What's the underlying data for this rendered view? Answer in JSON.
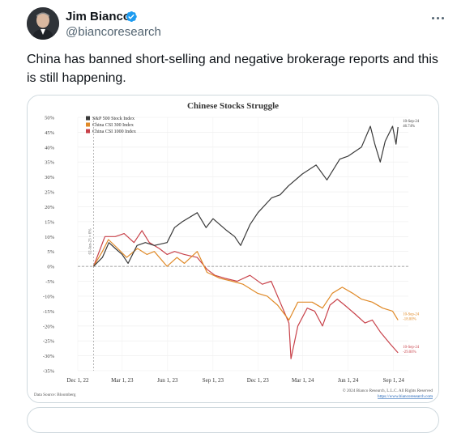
{
  "tweet": {
    "author_name": "Jim Bianco",
    "handle": "@biancoresearch",
    "text": "China has banned short-selling and negative brokerage reports and this is still happening."
  },
  "colors": {
    "sp500": "#3a3a3a",
    "csi300": "#e08a28",
    "csi1000": "#c8424a",
    "verified": "#1d9bf0"
  },
  "chart_data": {
    "type": "line",
    "title": "Chinese Stocks Struggle",
    "ylim": [
      -35,
      50
    ],
    "yticks": [
      "50%",
      "45%",
      "40%",
      "35%",
      "30%",
      "25%",
      "20%",
      "15%",
      "10%",
      "5%",
      "0%",
      "-5%",
      "-10%",
      "-15%",
      "-20%",
      "-25%",
      "-30%",
      "-35%"
    ],
    "xticks": [
      "Dec 1, 22",
      "Mar 1, 23",
      "Jun 1, 23",
      "Sep 1, 23",
      "Dec 1, 23",
      "Mar 1, 24",
      "Jun 1, 24",
      "Sep 1, 24"
    ],
    "x_range": [
      "2022-12-01",
      "2024-10-01"
    ],
    "baseline_label": "02-Jan-23 = 0%",
    "source": "Data Source: Bloomberg",
    "copyright": "© 2024 Bianco Research, L.L.C. All Rights Reserved",
    "website": "https://www.biancoresearch.com",
    "series": [
      {
        "name": "S&P 500 Stock Index",
        "color": "#3a3a3a",
        "end_label_date": "10-Sep-24",
        "end_label_value": "46.74%",
        "points": [
          [
            "2023-01-02",
            0
          ],
          [
            "2023-01-20",
            3
          ],
          [
            "2023-02-02",
            8
          ],
          [
            "2023-02-15",
            6
          ],
          [
            "2023-03-01",
            4
          ],
          [
            "2023-03-13",
            1
          ],
          [
            "2023-03-31",
            7
          ],
          [
            "2023-04-17",
            8
          ],
          [
            "2023-05-05",
            7
          ],
          [
            "2023-05-31",
            8
          ],
          [
            "2023-06-15",
            13
          ],
          [
            "2023-07-01",
            15
          ],
          [
            "2023-07-31",
            18
          ],
          [
            "2023-08-18",
            13
          ],
          [
            "2023-09-01",
            16
          ],
          [
            "2023-09-29",
            12
          ],
          [
            "2023-10-15",
            10
          ],
          [
            "2023-10-27",
            7
          ],
          [
            "2023-11-15",
            14
          ],
          [
            "2023-12-01",
            18
          ],
          [
            "2023-12-29",
            23
          ],
          [
            "2024-01-15",
            24
          ],
          [
            "2024-02-01",
            27
          ],
          [
            "2024-02-29",
            31
          ],
          [
            "2024-03-28",
            34
          ],
          [
            "2024-04-19",
            29
          ],
          [
            "2024-05-15",
            36
          ],
          [
            "2024-06-01",
            37
          ],
          [
            "2024-06-28",
            40
          ],
          [
            "2024-07-16",
            47
          ],
          [
            "2024-07-25",
            41
          ],
          [
            "2024-08-05",
            35
          ],
          [
            "2024-08-15",
            42
          ],
          [
            "2024-08-30",
            47
          ],
          [
            "2024-09-06",
            41
          ],
          [
            "2024-09-10",
            46.74
          ]
        ]
      },
      {
        "name": "China CSI 300 Index",
        "color": "#e08a28",
        "end_label_date": "10-Sep-24",
        "end_label_value": "-18.00%",
        "points": [
          [
            "2023-01-02",
            0
          ],
          [
            "2023-01-20",
            5
          ],
          [
            "2023-02-01",
            9
          ],
          [
            "2023-02-20",
            6
          ],
          [
            "2023-03-10",
            3
          ],
          [
            "2023-04-01",
            6
          ],
          [
            "2023-04-20",
            4
          ],
          [
            "2023-05-05",
            5
          ],
          [
            "2023-05-31",
            0
          ],
          [
            "2023-06-20",
            3
          ],
          [
            "2023-07-05",
            1
          ],
          [
            "2023-07-31",
            5
          ],
          [
            "2023-08-20",
            -2
          ],
          [
            "2023-09-15",
            -4
          ],
          [
            "2023-10-10",
            -5
          ],
          [
            "2023-11-01",
            -6
          ],
          [
            "2023-11-30",
            -9
          ],
          [
            "2023-12-20",
            -10
          ],
          [
            "2024-01-10",
            -13
          ],
          [
            "2024-02-02",
            -18
          ],
          [
            "2024-02-20",
            -12
          ],
          [
            "2024-03-20",
            -12
          ],
          [
            "2024-04-10",
            -14
          ],
          [
            "2024-04-30",
            -9
          ],
          [
            "2024-05-20",
            -7
          ],
          [
            "2024-06-10",
            -9
          ],
          [
            "2024-06-28",
            -11
          ],
          [
            "2024-07-20",
            -12
          ],
          [
            "2024-08-10",
            -14
          ],
          [
            "2024-08-30",
            -15
          ],
          [
            "2024-09-10",
            -18
          ]
        ]
      },
      {
        "name": "China CSI 1000 Index",
        "color": "#c8424a",
        "end_label_date": "10-Sep-24",
        "end_label_value": "-29.00%",
        "points": [
          [
            "2023-01-02",
            0
          ],
          [
            "2023-01-25",
            10
          ],
          [
            "2023-02-15",
            10
          ],
          [
            "2023-03-05",
            11
          ],
          [
            "2023-03-25",
            8
          ],
          [
            "2023-04-10",
            12
          ],
          [
            "2023-04-25",
            8
          ],
          [
            "2023-05-15",
            6
          ],
          [
            "2023-05-31",
            4
          ],
          [
            "2023-06-15",
            5
          ],
          [
            "2023-07-05",
            4
          ],
          [
            "2023-07-31",
            3
          ],
          [
            "2023-08-20",
            -1
          ],
          [
            "2023-09-05",
            -3
          ],
          [
            "2023-09-25",
            -4
          ],
          [
            "2023-10-20",
            -5
          ],
          [
            "2023-11-15",
            -3
          ],
          [
            "2023-12-10",
            -6
          ],
          [
            "2023-12-28",
            -5
          ],
          [
            "2024-01-15",
            -12
          ],
          [
            "2024-02-02",
            -19
          ],
          [
            "2024-02-06",
            -31
          ],
          [
            "2024-02-20",
            -20
          ],
          [
            "2024-03-10",
            -14
          ],
          [
            "2024-03-25",
            -15
          ],
          [
            "2024-04-10",
            -20
          ],
          [
            "2024-04-25",
            -13
          ],
          [
            "2024-05-10",
            -11
          ],
          [
            "2024-05-25",
            -13
          ],
          [
            "2024-06-15",
            -16
          ],
          [
            "2024-07-05",
            -19
          ],
          [
            "2024-07-20",
            -18
          ],
          [
            "2024-08-05",
            -22
          ],
          [
            "2024-08-25",
            -26
          ],
          [
            "2024-09-10",
            -29
          ]
        ]
      }
    ]
  }
}
